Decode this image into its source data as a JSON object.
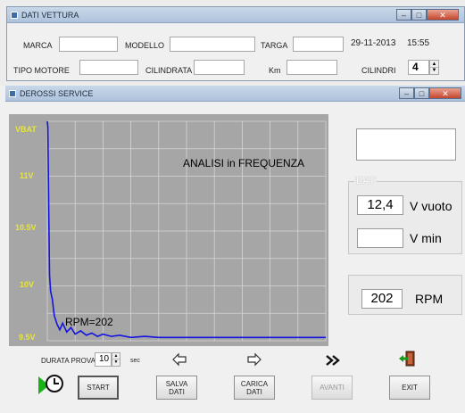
{
  "dati_vettura": {
    "title": "DATI VETTURA",
    "marca_label": "MARCA",
    "marca_value": "",
    "modello_label": "MODELLO",
    "modello_value": "",
    "targa_label": "TARGA",
    "targa_value": "",
    "date": "29-11-2013",
    "time": "15:55",
    "tipo_motore_label": "TIPO MOTORE",
    "tipo_motore_value": "",
    "cilindrata_label": "CILINDRATA",
    "cilindrata_value": "",
    "km_label": "Km",
    "km_value": "",
    "cilindri_label": "CILINDRI",
    "cilindri_value": "4"
  },
  "service": {
    "title": "DEROSSI SERVICE",
    "top_display": "",
    "bat_group_label": "BAT",
    "v_vuoto_value": "12,4",
    "v_vuoto_label": "V vuoto",
    "v_min_value": "",
    "v_min_label": "V min",
    "rpm_value": "202",
    "rpm_label": "RPM",
    "durata_label": "DURATA PROVA",
    "durata_value": "10",
    "durata_unit": "sec",
    "buttons": {
      "start": "START",
      "salva": "SALVA\nDATI",
      "carica": "CARICA\nDATI",
      "avanti": "AVANTI",
      "exit": "EXIT"
    }
  },
  "colors": {
    "trace": "#1414e0",
    "grid": "#d6d6d6",
    "axis_labels": "#e6e63a",
    "graph_bg": "#a6a6a6"
  },
  "chart_data": {
    "type": "line",
    "title": "ANALISI in FREQUENZA",
    "annotation": "RPM=202",
    "y_tick_labels": [
      "VBAT",
      "11V",
      "10.5V",
      "10V",
      "9.5V"
    ],
    "y_tick_values": [
      11.5,
      11.0,
      10.5,
      10.0,
      9.5
    ],
    "ylim": [
      9.5,
      11.5
    ],
    "xlim": [
      0,
      10
    ],
    "grid": true,
    "series": [
      {
        "x": [
          0.0,
          0.02,
          0.05,
          0.08,
          0.12,
          0.18,
          0.25,
          0.35,
          0.45,
          0.55,
          0.7,
          0.85,
          1.0,
          1.2,
          1.4,
          1.6,
          1.8,
          2.0,
          2.3,
          2.6,
          3.0,
          3.5,
          4.0,
          5.0,
          6.0,
          7.0,
          8.0,
          9.0,
          10.0
        ],
        "y": [
          11.5,
          11.45,
          10.7,
          10.1,
          9.95,
          9.88,
          9.73,
          9.65,
          9.6,
          9.66,
          9.58,
          9.62,
          9.56,
          9.59,
          9.55,
          9.57,
          9.54,
          9.56,
          9.54,
          9.55,
          9.53,
          9.54,
          9.53,
          9.53,
          9.53,
          9.53,
          9.53,
          9.53,
          9.53
        ]
      }
    ]
  }
}
